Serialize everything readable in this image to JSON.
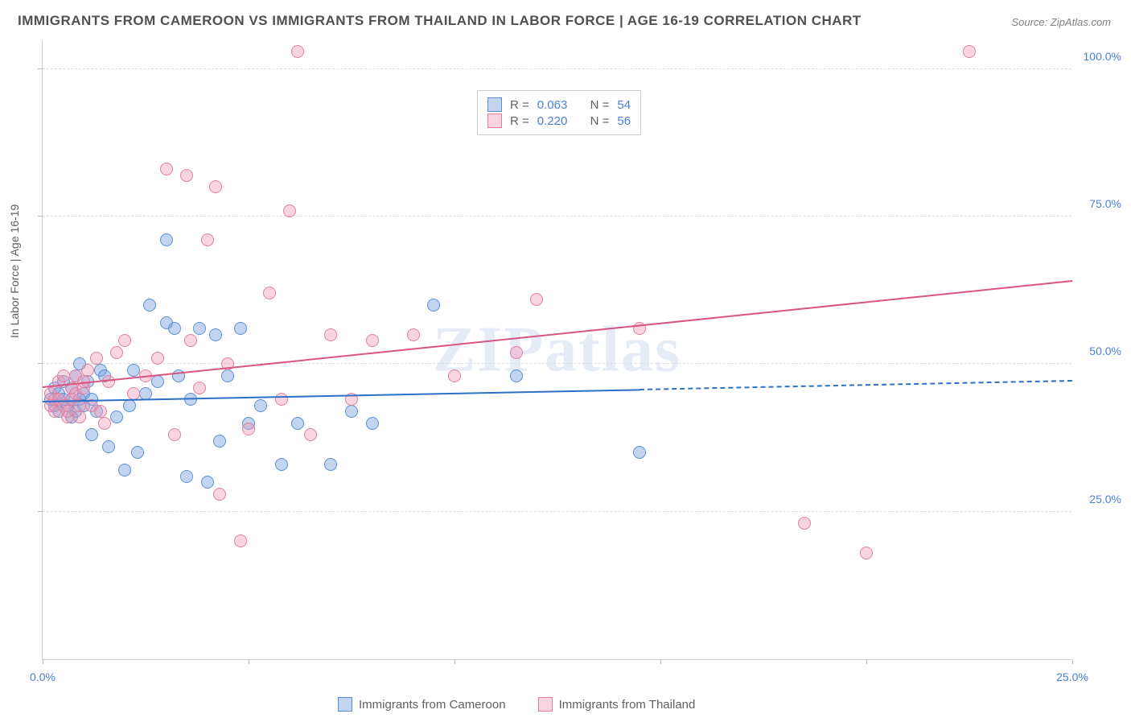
{
  "title": "IMMIGRANTS FROM CAMEROON VS IMMIGRANTS FROM THAILAND IN LABOR FORCE | AGE 16-19 CORRELATION CHART",
  "source": "Source: ZipAtlas.com",
  "watermark": "ZIPatlas",
  "chart": {
    "type": "scatter",
    "ylabel": "In Labor Force | Age 16-19",
    "xlim": [
      0,
      25
    ],
    "ylim": [
      0,
      105
    ],
    "ytick_values": [
      25,
      50,
      75,
      100
    ],
    "ytick_labels": [
      "25.0%",
      "50.0%",
      "75.0%",
      "100.0%"
    ],
    "xtick_values": [
      0,
      5,
      10,
      15,
      20,
      25
    ],
    "xtick_labels": [
      "0.0%",
      "",
      "",
      "",
      "",
      "25.0%"
    ],
    "background_color": "#ffffff",
    "grid_color": "#dddddd",
    "point_radius": 8,
    "series": [
      {
        "name": "Immigrants from Cameroon",
        "fill_color": "rgba(120,160,220,0.45)",
        "stroke_color": "#5a8fd0",
        "trend_color": "#2e6fc9",
        "r": "0.063",
        "n": "54",
        "trend": {
          "x1": 0,
          "y1": 43.5,
          "x2": 14.5,
          "y2": 45.5,
          "dashed_x2": 25,
          "dashed_y2": 47
        },
        "points": [
          [
            0.2,
            44
          ],
          [
            0.3,
            43
          ],
          [
            0.3,
            46
          ],
          [
            0.4,
            42
          ],
          [
            0.4,
            45
          ],
          [
            0.5,
            44
          ],
          [
            0.5,
            47
          ],
          [
            0.6,
            43
          ],
          [
            0.7,
            41
          ],
          [
            0.7,
            44
          ],
          [
            0.7,
            46
          ],
          [
            0.8,
            48
          ],
          [
            0.8,
            42
          ],
          [
            0.9,
            44
          ],
          [
            0.9,
            50
          ],
          [
            1.0,
            43
          ],
          [
            1.0,
            45
          ],
          [
            1.1,
            47
          ],
          [
            1.2,
            44
          ],
          [
            1.2,
            38
          ],
          [
            1.3,
            42
          ],
          [
            1.4,
            49
          ],
          [
            1.5,
            48
          ],
          [
            1.6,
            36
          ],
          [
            1.8,
            41
          ],
          [
            2.0,
            32
          ],
          [
            2.1,
            43
          ],
          [
            2.2,
            49
          ],
          [
            2.3,
            35
          ],
          [
            2.5,
            45
          ],
          [
            2.6,
            60
          ],
          [
            2.8,
            47
          ],
          [
            3.0,
            57
          ],
          [
            3.0,
            71
          ],
          [
            3.2,
            56
          ],
          [
            3.3,
            48
          ],
          [
            3.5,
            31
          ],
          [
            3.6,
            44
          ],
          [
            3.8,
            56
          ],
          [
            4.0,
            30
          ],
          [
            4.2,
            55
          ],
          [
            4.3,
            37
          ],
          [
            4.5,
            48
          ],
          [
            4.8,
            56
          ],
          [
            5.0,
            40
          ],
          [
            5.3,
            43
          ],
          [
            5.8,
            33
          ],
          [
            6.2,
            40
          ],
          [
            7.0,
            33
          ],
          [
            7.5,
            42
          ],
          [
            8.0,
            40
          ],
          [
            9.5,
            60
          ],
          [
            11.5,
            48
          ],
          [
            14.5,
            35
          ]
        ]
      },
      {
        "name": "Immigrants from Thailand",
        "fill_color": "rgba(240,150,180,0.40)",
        "stroke_color": "#e07fa0",
        "trend_color": "#d8557f",
        "r": "0.220",
        "n": "56",
        "trend": {
          "x1": 0,
          "y1": 46,
          "x2": 25,
          "y2": 64
        },
        "points": [
          [
            0.2,
            43
          ],
          [
            0.2,
            45
          ],
          [
            0.3,
            44
          ],
          [
            0.3,
            42
          ],
          [
            0.4,
            47
          ],
          [
            0.4,
            44
          ],
          [
            0.5,
            48
          ],
          [
            0.5,
            43
          ],
          [
            0.6,
            41
          ],
          [
            0.6,
            42
          ],
          [
            0.7,
            46
          ],
          [
            0.7,
            44
          ],
          [
            0.8,
            45
          ],
          [
            0.8,
            48
          ],
          [
            0.9,
            43
          ],
          [
            0.9,
            41
          ],
          [
            1.0,
            46
          ],
          [
            1.0,
            47
          ],
          [
            1.1,
            49
          ],
          [
            1.2,
            43
          ],
          [
            1.3,
            51
          ],
          [
            1.4,
            42
          ],
          [
            1.5,
            40
          ],
          [
            1.6,
            47
          ],
          [
            1.8,
            52
          ],
          [
            2.0,
            54
          ],
          [
            2.2,
            45
          ],
          [
            2.5,
            48
          ],
          [
            2.8,
            51
          ],
          [
            3.0,
            83
          ],
          [
            3.2,
            38
          ],
          [
            3.5,
            82
          ],
          [
            3.6,
            54
          ],
          [
            3.8,
            46
          ],
          [
            4.0,
            71
          ],
          [
            4.2,
            80
          ],
          [
            4.3,
            28
          ],
          [
            4.5,
            50
          ],
          [
            4.8,
            20
          ],
          [
            5.0,
            39
          ],
          [
            5.5,
            62
          ],
          [
            5.8,
            44
          ],
          [
            6.0,
            76
          ],
          [
            6.2,
            103
          ],
          [
            6.5,
            38
          ],
          [
            7.0,
            55
          ],
          [
            7.5,
            44
          ],
          [
            8.0,
            54
          ],
          [
            9.0,
            55
          ],
          [
            10.0,
            48
          ],
          [
            11.5,
            52
          ],
          [
            12.0,
            61
          ],
          [
            14.5,
            56
          ],
          [
            18.5,
            23
          ],
          [
            20.0,
            18
          ],
          [
            22.5,
            103
          ]
        ]
      }
    ]
  },
  "legend_top": {
    "r_label": "R =",
    "n_label": "N ="
  },
  "legend_bottom": {
    "items": [
      "Immigrants from Cameroon",
      "Immigrants from Thailand"
    ]
  }
}
